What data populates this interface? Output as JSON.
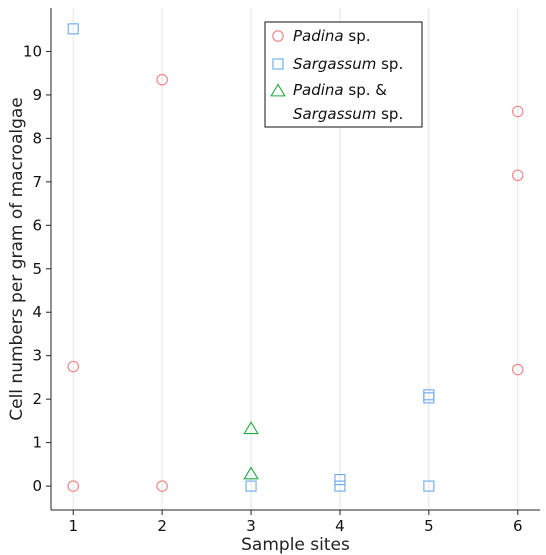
{
  "chart_data": {
    "type": "scatter",
    "xlabel": "Sample sites",
    "ylabel": "Cell numbers per gram of macroalgae",
    "xlim": [
      0.75,
      6.25
    ],
    "ylim": [
      -0.55,
      11.0
    ],
    "x_ticks": [
      1,
      2,
      3,
      4,
      5,
      6
    ],
    "y_ticks": [
      0,
      1,
      2,
      3,
      4,
      5,
      6,
      7,
      8,
      9,
      10
    ],
    "grid": "vertical",
    "legend_position": "top-center",
    "series": [
      {
        "name": "Padina sp.",
        "legend_parts": [
          {
            "text": "Padina",
            "italic": true
          },
          {
            "text": " sp.",
            "italic": false
          }
        ],
        "marker": "circle",
        "color": "#f08080",
        "points": [
          [
            1,
            0
          ],
          [
            1,
            2.75
          ],
          [
            2,
            0
          ],
          [
            2,
            9.35
          ],
          [
            6,
            2.68
          ],
          [
            6,
            7.15
          ],
          [
            6,
            8.62
          ]
        ]
      },
      {
        "name": "Sargassum sp.",
        "legend_parts": [
          {
            "text": "Sargassum",
            "italic": true
          },
          {
            "text": " sp.",
            "italic": false
          }
        ],
        "marker": "square",
        "color": "#6aa8f0",
        "points": [
          [
            1,
            10.52
          ],
          [
            3,
            0
          ],
          [
            4,
            0
          ],
          [
            4,
            0.15
          ],
          [
            5,
            0
          ],
          [
            5,
            2.03
          ],
          [
            5,
            2.1
          ]
        ]
      },
      {
        "name": "Padina sp. & Sargassum sp.",
        "legend_parts": [
          {
            "text": "Padina",
            "italic": true
          },
          {
            "text": " sp. &",
            "italic": false
          }
        ],
        "legend_parts_line2": [
          {
            "text": "Sargassum",
            "italic": true
          },
          {
            "text": " sp.",
            "italic": false
          }
        ],
        "marker": "triangle",
        "color": "#22aa44",
        "points": [
          [
            3,
            0.28
          ],
          [
            3,
            1.32
          ]
        ]
      }
    ]
  }
}
